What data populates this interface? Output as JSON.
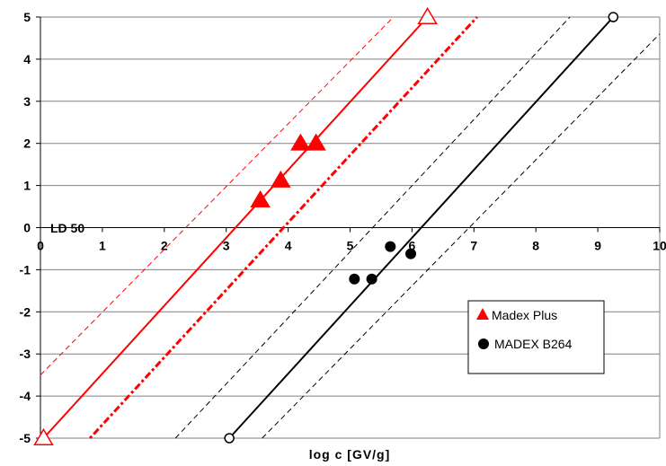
{
  "chart_data": {
    "type": "scatter",
    "xlabel": "log c [GV/g]",
    "annotation": "LD 50",
    "xlim": [
      0,
      10
    ],
    "ylim": [
      -5,
      5
    ],
    "x_ticks": [
      "0",
      "1",
      "2",
      "3",
      "4",
      "5",
      "6",
      "7",
      "8",
      "9",
      "10"
    ],
    "y_ticks": [
      "5",
      "4",
      "3",
      "2",
      "1",
      "0",
      "-1",
      "-2",
      "-3",
      "-4",
      "-5"
    ],
    "grid": "horizontal",
    "legend": "right",
    "series": [
      {
        "name": "Madex Plus",
        "color": "#ff0000",
        "marker": "triangle",
        "points": [
          [
            3.55,
            0.65
          ],
          [
            3.88,
            1.12
          ],
          [
            4.2,
            2.0
          ],
          [
            4.45,
            2.0
          ]
        ],
        "fit_endpoints": [
          [
            0.05,
            -5.0
          ],
          [
            6.25,
            5.0
          ]
        ],
        "fit_line": [
          [
            0.05,
            -5.0
          ],
          [
            6.25,
            5.0
          ]
        ],
        "ci_upper": [
          [
            0.0,
            -3.5
          ],
          [
            5.7,
            5.0
          ]
        ],
        "ci_lower": [
          [
            0.8,
            -5.0
          ],
          [
            7.05,
            5.0
          ]
        ]
      },
      {
        "name": "MADEX B264",
        "color": "#000000",
        "marker": "circle",
        "points": [
          [
            5.07,
            -1.22
          ],
          [
            5.35,
            -1.22
          ],
          [
            5.65,
            -0.45
          ],
          [
            5.98,
            -0.62
          ]
        ],
        "fit_endpoints": [
          [
            3.05,
            -5.0
          ],
          [
            9.25,
            5.0
          ]
        ],
        "fit_line": [
          [
            3.05,
            -5.0
          ],
          [
            9.25,
            5.0
          ]
        ],
        "ci_upper": [
          [
            2.18,
            -5.0
          ],
          [
            8.55,
            5.0
          ]
        ],
        "ci_lower": [
          [
            3.58,
            -5.0
          ],
          [
            10.0,
            4.6
          ]
        ]
      }
    ]
  }
}
